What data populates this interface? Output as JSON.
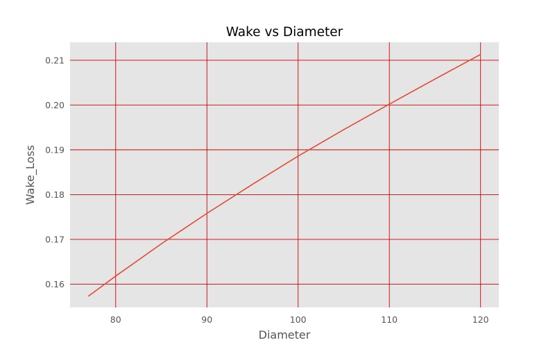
{
  "chart_data": {
    "type": "line",
    "title": "Wake vs Diameter",
    "xlabel": "Diameter",
    "ylabel": "Wake_Loss",
    "xlim": [
      75,
      122
    ],
    "ylim": [
      0.1548,
      0.214
    ],
    "xticks": [
      80,
      90,
      100,
      110,
      120
    ],
    "yticks": [
      0.16,
      0.17,
      0.18,
      0.19,
      0.2,
      0.21
    ],
    "xtick_labels": [
      "80",
      "90",
      "100",
      "110",
      "120"
    ],
    "ytick_labels": [
      "0.16",
      "0.17",
      "0.18",
      "0.19",
      "0.20",
      "0.21"
    ],
    "grid": true,
    "series": [
      {
        "x": [
          77,
          80,
          85,
          90,
          95,
          100,
          105,
          110,
          115,
          120
        ],
        "y": [
          0.1573,
          0.1618,
          0.169,
          0.1758,
          0.1823,
          0.1886,
          0.1945,
          0.2002,
          0.2058,
          0.2113
        ]
      }
    ]
  },
  "colors": {
    "plot_background": "#e5e5e5",
    "grid": "#cc0000",
    "line": "#e24a33"
  }
}
